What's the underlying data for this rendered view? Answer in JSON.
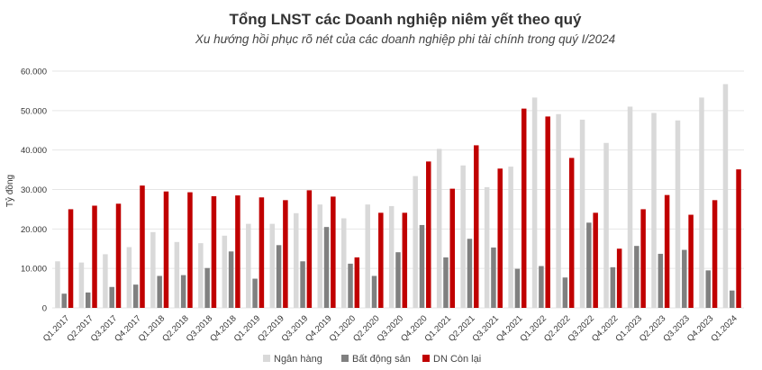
{
  "chart_data": {
    "type": "bar",
    "title": "Tổng LNST các Doanh nghiệp niêm yết theo quý",
    "subtitle": "Xu hướng hồi phục rõ nét của các doanh nghiệp phi tài chính trong quý I/2024",
    "ylabel": "Tỷ đồng",
    "xlabel": "",
    "ylim": [
      0,
      60000
    ],
    "yticks": [
      "0",
      "10.000",
      "20.000",
      "30.000",
      "40.000",
      "50.000",
      "60.000"
    ],
    "ytick_values": [
      0,
      10000,
      20000,
      30000,
      40000,
      50000,
      60000
    ],
    "grid": true,
    "legend_position": "bottom",
    "categories": [
      "Q1.2017",
      "Q2.2017",
      "Q3.2017",
      "Q4.2017",
      "Q1.2018",
      "Q2.2018",
      "Q3.2018",
      "Q4.2018",
      "Q1.2019",
      "Q2.2019",
      "Q3.2019",
      "Q4.2019",
      "Q1.2020",
      "Q2.2020",
      "Q3.2020",
      "Q4.2020",
      "Q1.2021",
      "Q2.2021",
      "Q3.2021",
      "Q4.2021",
      "Q1.2022",
      "Q2.2022",
      "Q3.2022",
      "Q4.2022",
      "Q1.2023",
      "Q2.2023",
      "Q3.2023",
      "Q4.2023",
      "Q1.2024"
    ],
    "series": [
      {
        "name": "Ngân hàng",
        "color": "#d9d9d9",
        "values": [
          11800,
          11500,
          13600,
          15400,
          19200,
          16700,
          16400,
          18300,
          21300,
          21300,
          24000,
          26200,
          22700,
          26200,
          25800,
          33400,
          40300,
          36100,
          30600,
          35800,
          53300,
          49100,
          47700,
          41800,
          51000,
          49400,
          47500,
          53300,
          56700
        ]
      },
      {
        "name": "Bất động sản",
        "color": "#808080",
        "values": [
          3600,
          3900,
          5300,
          5900,
          8100,
          8300,
          10100,
          14300,
          7400,
          15900,
          11800,
          20500,
          11200,
          8100,
          14100,
          21000,
          12800,
          17500,
          15300,
          9900,
          10600,
          7700,
          21600,
          10300,
          15700,
          13700,
          14700,
          9500,
          4400
        ]
      },
      {
        "name": "DN Còn lại",
        "color": "#c00000",
        "values": [
          25000,
          25900,
          26400,
          31000,
          29500,
          29300,
          28300,
          28500,
          28000,
          27300,
          29800,
          28200,
          12800,
          24100,
          24100,
          37100,
          30200,
          41200,
          35300,
          50500,
          48500,
          38000,
          24100,
          15000,
          25000,
          28600,
          23600,
          27300,
          35100
        ]
      }
    ]
  }
}
